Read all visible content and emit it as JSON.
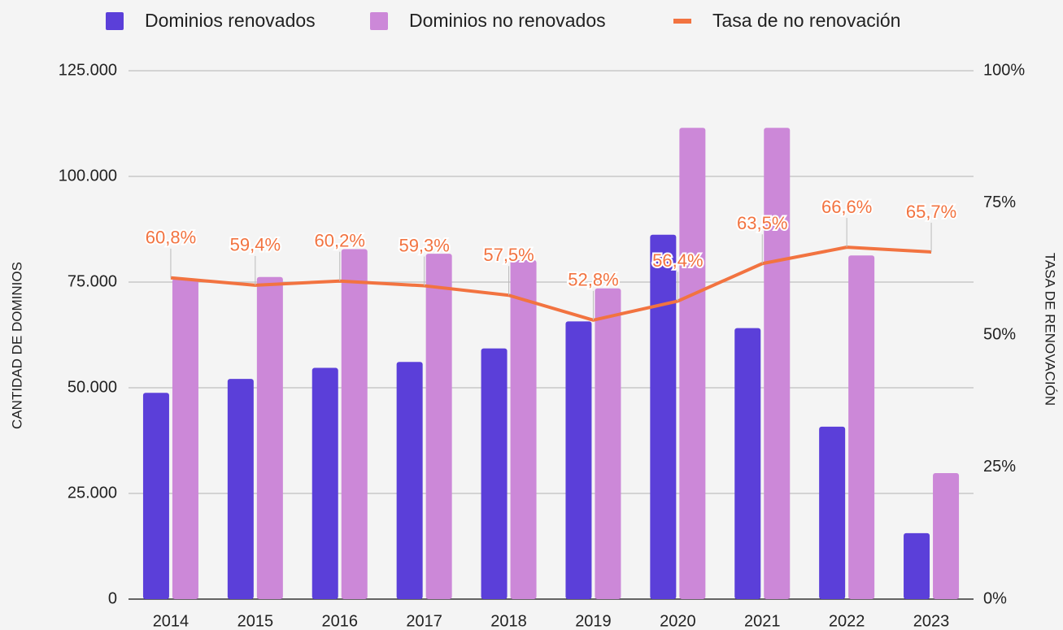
{
  "chart_data": {
    "type": "bar_line",
    "categories": [
      "2014",
      "2015",
      "2016",
      "2017",
      "2018",
      "2019",
      "2020",
      "2021",
      "2022",
      "2023"
    ],
    "series": [
      {
        "name": "Dominios renovados",
        "color": "#5b3fd9",
        "values": [
          48800,
          52100,
          54700,
          56100,
          59300,
          65700,
          86200,
          64100,
          40800,
          15600
        ]
      },
      {
        "name": "Dominios no renovados",
        "color": "#cc88d8",
        "values": [
          75800,
          76200,
          82800,
          81700,
          80200,
          73500,
          111500,
          111500,
          81300,
          29800
        ]
      },
      {
        "name": "Tasa de no renovación",
        "color": "#f27340",
        "axis": "y2",
        "type": "line",
        "values": [
          60.8,
          59.4,
          60.2,
          59.3,
          57.5,
          52.8,
          56.4,
          63.5,
          66.6,
          65.7
        ],
        "value_labels": [
          "60,8%",
          "59,4%",
          "60,2%",
          "59,3%",
          "57,5%",
          "52,8%",
          "56,4%",
          "63,5%",
          "66,6%",
          "65,7%"
        ]
      }
    ],
    "ylabel": "CANTIDAD DE DOMINIOS",
    "y2label": "TASA DE RENOVACIÓN",
    "ylim": [
      0,
      125000
    ],
    "yticks": [
      0,
      {
        "value": 25000,
        "label": "25.000"
      },
      {
        "value": 50000,
        "label": "50.000"
      },
      {
        "value": 75000,
        "label": "75.000"
      },
      {
        "value": 100000,
        "label": "100.000"
      },
      {
        "value": 125000,
        "label": "125.000"
      }
    ],
    "y2lim": [
      0,
      100
    ],
    "y2ticks": [
      {
        "value": 0,
        "label": "0%"
      },
      {
        "value": 25,
        "label": "25%"
      },
      {
        "value": 50,
        "label": "50%"
      },
      {
        "value": 75,
        "label": "75%"
      },
      {
        "value": 100,
        "label": "100%"
      }
    ],
    "grid": true,
    "legend": "top"
  }
}
